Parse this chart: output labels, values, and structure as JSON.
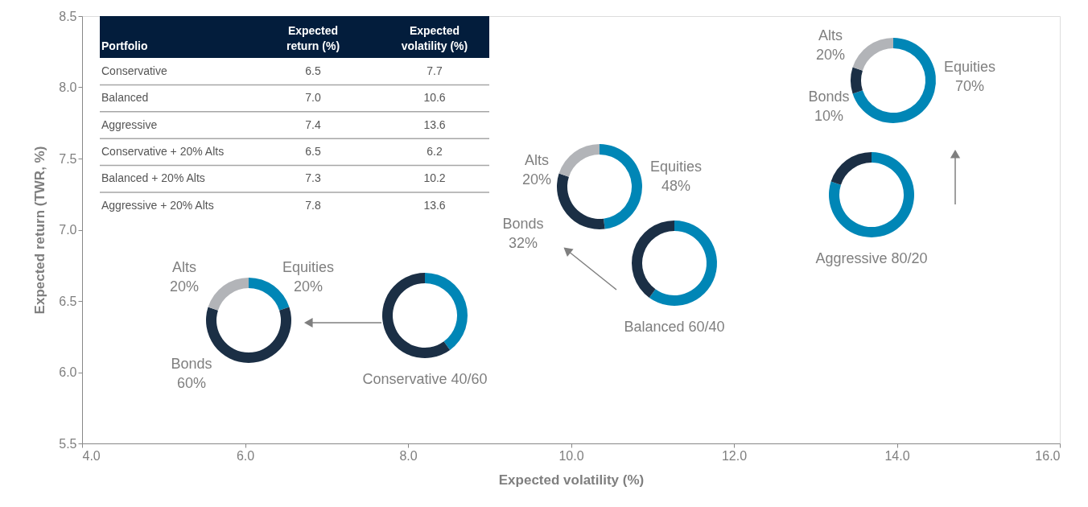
{
  "chart_data": [
    {
      "type": "scatter",
      "xlabel": "Expected volatility (%)",
      "ylabel": "Expected return (TWR, %)",
      "xlim": [
        4,
        16
      ],
      "ylim": [
        5.5,
        8.5
      ],
      "xticks": [
        {
          "value": 4,
          "label": "4.0"
        },
        {
          "value": 6,
          "label": "6.0"
        },
        {
          "value": 8,
          "label": "8.0"
        },
        {
          "value": 10,
          "label": "10.0"
        },
        {
          "value": 12,
          "label": "12.0"
        },
        {
          "value": 14,
          "label": "14.0"
        },
        {
          "value": 16,
          "label": "16.0"
        }
      ],
      "yticks": [
        5.5,
        {
          "value": 6,
          "label": "6.0"
        },
        6.5,
        {
          "value": 7,
          "label": "7.0"
        },
        7.5,
        {
          "value": 8,
          "label": "8.0"
        },
        8.5
      ],
      "grid": false
    },
    {
      "type": "other",
      "annotations": [
        "Portfolio",
        "Expected\nreturn (%)",
        "Expected\nvolatility (%)",
        "Conservative",
        "6.5",
        "7.7",
        "Balanced",
        "7.0",
        "10.6",
        "Aggressive",
        "7.4",
        "13.6",
        "Conservative + 20% Alts",
        "6.5",
        "6.2",
        "Balanced + 20% Alts",
        "7.3",
        "10.2",
        "Aggressive + 20% Alts",
        "7.8",
        "13.6"
      ]
    },
    {
      "type": "donut",
      "categories": [
        "Equities",
        "Bonds",
        "Alts"
      ],
      "values": [
        70,
        10,
        20
      ],
      "colors": [
        "#0086b6",
        "#1b2f45",
        "#b2b4b8"
      ],
      "value_labels": [
        "70%",
        "10%",
        "20%"
      ]
    },
    {
      "type": "donut",
      "categories": [
        "Equities",
        "Bonds",
        "Alts"
      ],
      "values": [
        48,
        32,
        20
      ],
      "colors": [
        "#0086b6",
        "#1b2f45",
        "#b2b4b8"
      ],
      "value_labels": [
        "48%",
        "32%",
        "20%"
      ]
    },
    {
      "type": "donut",
      "title": "Aggressive 80/20",
      "categories": [
        null,
        null
      ],
      "values": [
        80,
        20
      ],
      "colors": [
        "#0086b6",
        "#1b2f45"
      ]
    },
    {
      "type": "donut",
      "title": "Balanced 60/40",
      "categories": [
        null,
        null
      ],
      "values": [
        60,
        40
      ],
      "colors": [
        "#0086b6",
        "#1b2f45"
      ]
    },
    {
      "type": "donut",
      "title": "Conservative 40/60",
      "categories": [
        null,
        null
      ],
      "values": [
        40,
        60
      ],
      "colors": [
        "#0086b6",
        "#1b2f45"
      ]
    },
    {
      "type": "donut",
      "categories": [
        "Equities",
        "Bonds",
        "Alts"
      ],
      "values": [
        20,
        60,
        20
      ],
      "colors": [
        "#0086b6",
        "#1b2f45",
        "#b2b4b8"
      ],
      "value_labels": [
        "20%",
        "60%",
        "20%"
      ]
    }
  ]
}
